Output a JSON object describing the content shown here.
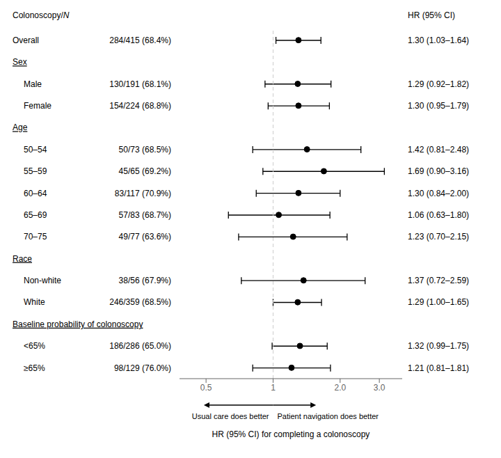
{
  "chart_data": {
    "type": "forest",
    "log": "x",
    "grid": false,
    "color": "#000000",
    "categories": [
      "Overall",
      "Sex",
      "Male",
      "Female",
      "Age",
      "50–54",
      "55–59",
      "60–64",
      "65–69",
      "70–75",
      "Race",
      "Non-white",
      "White",
      "Baseline probability of colonoscopy",
      "<65%",
      "≥65%"
    ],
    "indent": [
      false,
      false,
      true,
      true,
      false,
      true,
      true,
      true,
      true,
      true,
      false,
      true,
      true,
      false,
      true,
      true
    ],
    "data_text": [
      "284/415 (68.4%)",
      null,
      "130/191 (68.1%)",
      "154/224 (68.8%)",
      null,
      "50/73 (68.5%)",
      "45/65 (69.2%)",
      "83/117 (70.9%)",
      "57/83 (68.7%)",
      "49/77 (63.6%)",
      null,
      "38/56 (67.9%)",
      "246/359 (68.5%)",
      null,
      "186/286 (65.0%)",
      "98/129 (76.0%)"
    ],
    "values": [
      1.3,
      null,
      1.29,
      1.3,
      null,
      1.42,
      1.69,
      1.3,
      1.06,
      1.23,
      null,
      1.37,
      1.29,
      null,
      1.32,
      1.21
    ],
    "ci_low": [
      1.03,
      null,
      0.92,
      0.95,
      null,
      0.81,
      0.9,
      0.84,
      0.63,
      0.7,
      null,
      0.72,
      1.0,
      null,
      0.99,
      0.81
    ],
    "ci_high": [
      1.64,
      null,
      1.82,
      1.79,
      null,
      2.48,
      3.16,
      2.0,
      1.8,
      2.15,
      null,
      2.59,
      1.65,
      null,
      1.75,
      1.81
    ],
    "value_labels": [
      "1.30 (1.03–1.64)",
      null,
      "1.29 (0.92–1.82)",
      "1.30 (0.95–1.79)",
      null,
      "1.42 (0.81–2.48)",
      "1.69 (0.90–3.16)",
      "1.30 (0.84–2.00)",
      "1.06 (0.63–1.80)",
      "1.23 (0.70–2.15)",
      null,
      "1.37 (0.72–2.59)",
      "1.29 (1.00–1.65)",
      null,
      "1.32 (0.99–1.75)",
      "1.21 (0.81–1.81)"
    ],
    "data_header": "Colonoscopy/",
    "data_header_italic": "N",
    "value_header": "HR (95% CI)",
    "ref_line": 1.0,
    "xlim": [
      0.38,
      3.8
    ],
    "xticks": [
      0.5,
      1,
      {
        "value": 2,
        "label": "2.0"
      },
      {
        "value": 3,
        "label": "3.0"
      }
    ],
    "annotations": [
      "Usual care does better",
      "Patient navigation does better"
    ],
    "xlabel": "HR (95% CI) for completing a colonoscopy"
  }
}
